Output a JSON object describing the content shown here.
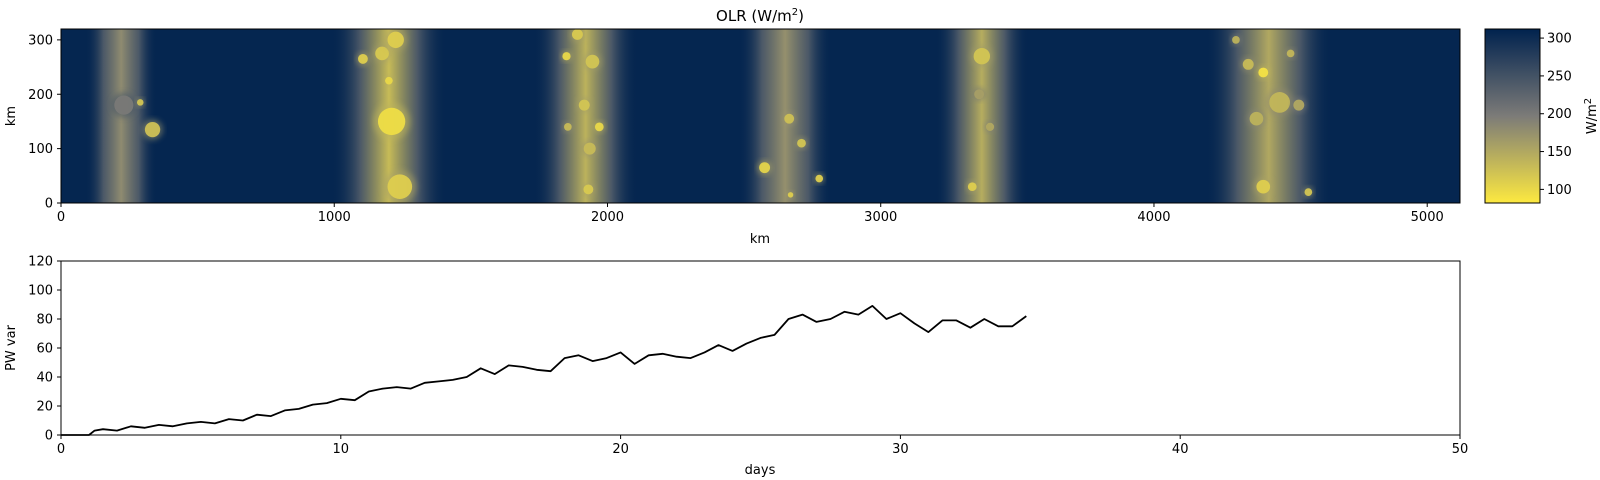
{
  "chart_data": [
    {
      "type": "heatmap",
      "title_main": "OLR (W/m",
      "title_sup": "2",
      "title_end": ")",
      "xlabel": "km",
      "ylabel": "km",
      "xlim": [
        0,
        5120
      ],
      "ylim": [
        0,
        320
      ],
      "xticks": [
        "0",
        "1000",
        "2000",
        "3000",
        "4000",
        "5000"
      ],
      "yticks": [
        "0",
        "100",
        "200",
        "300"
      ],
      "colormap": "cividis_r",
      "colors": {
        "low": "#fde940",
        "mid": "#7c7b78",
        "high": "#00224e"
      },
      "colorbar": {
        "label_main": "W/m",
        "label_sup": "2",
        "range": [
          82,
          312
        ],
        "ticks": [
          "100",
          "150",
          "200",
          "250",
          "300"
        ]
      },
      "bands": [
        {
          "x_center": 220,
          "x_width": 260,
          "peak_olr": 180
        },
        {
          "x_center": 1200,
          "x_width": 420,
          "peak_olr": 130
        },
        {
          "x_center": 1920,
          "x_width": 380,
          "peak_olr": 140
        },
        {
          "x_center": 2650,
          "x_width": 340,
          "peak_olr": 175
        },
        {
          "x_center": 3370,
          "x_width": 340,
          "peak_olr": 145
        },
        {
          "x_center": 4420,
          "x_width": 460,
          "peak_olr": 150
        }
      ],
      "cells": [
        {
          "x": 230,
          "y": 180,
          "r": 35,
          "olr": 200
        },
        {
          "x": 335,
          "y": 135,
          "r": 28,
          "olr": 125
        },
        {
          "x": 290,
          "y": 185,
          "r": 12,
          "olr": 120
        },
        {
          "x": 1105,
          "y": 265,
          "r": 18,
          "olr": 110
        },
        {
          "x": 1175,
          "y": 275,
          "r": 25,
          "olr": 115
        },
        {
          "x": 1225,
          "y": 300,
          "r": 30,
          "olr": 110
        },
        {
          "x": 1200,
          "y": 225,
          "r": 14,
          "olr": 100
        },
        {
          "x": 1210,
          "y": 150,
          "r": 50,
          "olr": 95
        },
        {
          "x": 1240,
          "y": 30,
          "r": 45,
          "olr": 110
        },
        {
          "x": 1850,
          "y": 270,
          "r": 15,
          "olr": 100
        },
        {
          "x": 1890,
          "y": 310,
          "r": 20,
          "olr": 115
        },
        {
          "x": 1945,
          "y": 260,
          "r": 25,
          "olr": 120
        },
        {
          "x": 1915,
          "y": 180,
          "r": 20,
          "olr": 120
        },
        {
          "x": 1970,
          "y": 140,
          "r": 16,
          "olr": 100
        },
        {
          "x": 1935,
          "y": 100,
          "r": 22,
          "olr": 130
        },
        {
          "x": 1930,
          "y": 25,
          "r": 18,
          "olr": 115
        },
        {
          "x": 1855,
          "y": 140,
          "r": 14,
          "olr": 130
        },
        {
          "x": 2665,
          "y": 155,
          "r": 18,
          "olr": 125
        },
        {
          "x": 2575,
          "y": 65,
          "r": 20,
          "olr": 105
        },
        {
          "x": 2710,
          "y": 110,
          "r": 16,
          "olr": 120
        },
        {
          "x": 2775,
          "y": 45,
          "r": 14,
          "olr": 110
        },
        {
          "x": 2670,
          "y": 15,
          "r": 10,
          "olr": 110
        },
        {
          "x": 3370,
          "y": 270,
          "r": 30,
          "olr": 120
        },
        {
          "x": 3360,
          "y": 200,
          "r": 18,
          "olr": 160
        },
        {
          "x": 3400,
          "y": 140,
          "r": 15,
          "olr": 150
        },
        {
          "x": 3335,
          "y": 30,
          "r": 16,
          "olr": 110
        },
        {
          "x": 4400,
          "y": 240,
          "r": 18,
          "olr": 90
        },
        {
          "x": 4345,
          "y": 255,
          "r": 20,
          "olr": 130
        },
        {
          "x": 4460,
          "y": 185,
          "r": 38,
          "olr": 135
        },
        {
          "x": 4375,
          "y": 155,
          "r": 25,
          "olr": 140
        },
        {
          "x": 4530,
          "y": 180,
          "r": 20,
          "olr": 150
        },
        {
          "x": 4400,
          "y": 30,
          "r": 25,
          "olr": 110
        },
        {
          "x": 4565,
          "y": 20,
          "r": 14,
          "olr": 120
        },
        {
          "x": 4500,
          "y": 275,
          "r": 14,
          "olr": 135
        },
        {
          "x": 4300,
          "y": 300,
          "r": 14,
          "olr": 140
        }
      ]
    },
    {
      "type": "line",
      "xlabel": "days",
      "ylabel": "PW var",
      "xlim": [
        0,
        50
      ],
      "ylim": [
        0,
        120
      ],
      "xticks": [
        "0",
        "10",
        "20",
        "30",
        "40",
        "50"
      ],
      "yticks": [
        "0",
        "20",
        "40",
        "60",
        "80",
        "100",
        "120"
      ],
      "line_color": "#000000",
      "x": [
        0,
        1,
        1.2,
        1.5,
        2,
        2.5,
        3,
        3.5,
        4,
        4.5,
        5,
        5.5,
        6,
        6.5,
        7,
        7.5,
        8,
        8.5,
        9,
        9.5,
        10,
        10.5,
        11,
        11.5,
        12,
        12.5,
        13,
        13.5,
        14,
        14.5,
        15,
        15.5,
        16,
        16.5,
        17,
        17.5,
        18,
        18.5,
        19,
        19.5,
        20,
        20.5,
        21,
        21.5,
        22,
        22.5,
        23,
        23.5,
        24,
        24.5,
        25,
        25.5,
        26,
        26.5,
        27,
        27.5,
        28,
        28.5,
        29,
        29.5,
        30,
        30.5,
        31,
        31.5,
        32,
        32.5,
        33,
        33.5,
        34,
        34.5
      ],
      "y": [
        0,
        0,
        3,
        4,
        3,
        6,
        5,
        7,
        6,
        8,
        9,
        8,
        11,
        10,
        14,
        13,
        17,
        18,
        21,
        22,
        25,
        24,
        30,
        32,
        33,
        32,
        36,
        37,
        38,
        40,
        46,
        42,
        48,
        47,
        45,
        44,
        53,
        55,
        51,
        53,
        57,
        49,
        55,
        56,
        54,
        53,
        57,
        62,
        58,
        63,
        67,
        69,
        80,
        83,
        78,
        80,
        85,
        83,
        89,
        80,
        84,
        77,
        71,
        79,
        79,
        74,
        80,
        75,
        75,
        82
      ]
    }
  ]
}
